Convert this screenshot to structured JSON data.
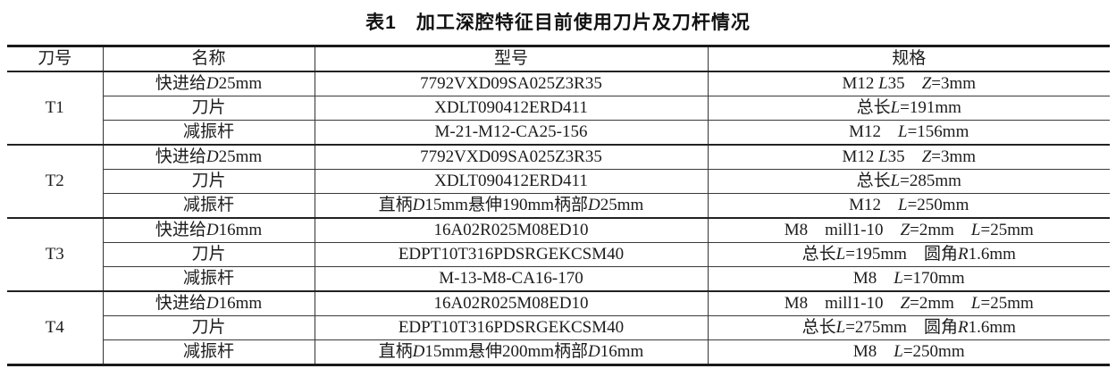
{
  "title": "表1　加工深腔特征目前使用刀片及刀杆情况",
  "columns": [
    "刀号",
    "名称",
    "型号",
    "规格"
  ],
  "groups": [
    {
      "tool": "T1",
      "rows": [
        {
          "name": "快进给*D*25mm",
          "model": "7792VXD09SA025Z3R35",
          "spec": "M12 *L*35　*Z*=3mm"
        },
        {
          "name": "刀片",
          "model": "XDLT090412ERD411",
          "spec": "总长*L*=191mm"
        },
        {
          "name": "减振杆",
          "model": "M-21-M12-CA25-156",
          "spec": "M12　*L*=156mm"
        }
      ]
    },
    {
      "tool": "T2",
      "rows": [
        {
          "name": "快进给*D*25mm",
          "model": "7792VXD09SA025Z3R35",
          "spec": "M12 *L*35　*Z*=3mm"
        },
        {
          "name": "刀片",
          "model": "XDLT090412ERD411",
          "spec": "总长*L*=285mm"
        },
        {
          "name": "减振杆",
          "model": "直柄*D*15mm悬伸190mm柄部*D*25mm",
          "spec": "M12　*L*=250mm"
        }
      ]
    },
    {
      "tool": "T3",
      "rows": [
        {
          "name": "快进给*D*16mm",
          "model": "16A02R025M08ED10",
          "spec": "M8　mill1-10　*Z*=2mm　*L*=25mm"
        },
        {
          "name": "刀片",
          "model": "EDPT10T316PDSRGEKCSM40",
          "spec": "总长*L*=195mm　圆角*R*1.6mm"
        },
        {
          "name": "减振杆",
          "model": "M-13-M8-CA16-170",
          "spec": "M8　*L*=170mm"
        }
      ]
    },
    {
      "tool": "T4",
      "rows": [
        {
          "name": "快进给*D*16mm",
          "model": "16A02R025M08ED10",
          "spec": "M8　mill1-10　*Z*=2mm　*L*=25mm"
        },
        {
          "name": "刀片",
          "model": "EDPT10T316PDSRGEKCSM40",
          "spec": "总长*L*=275mm　圆角*R*1.6mm"
        },
        {
          "name": "减振杆",
          "model": "直柄*D*15mm悬伸200mm柄部*D*16mm",
          "spec": "M8　*L*=250mm"
        }
      ]
    }
  ],
  "colors": {
    "text": "#1c1c1c",
    "rule_heavy": "#1a1a1a",
    "rule_medium": "#222222",
    "rule_light": "#3a3a3a",
    "background": "#ffffff"
  }
}
